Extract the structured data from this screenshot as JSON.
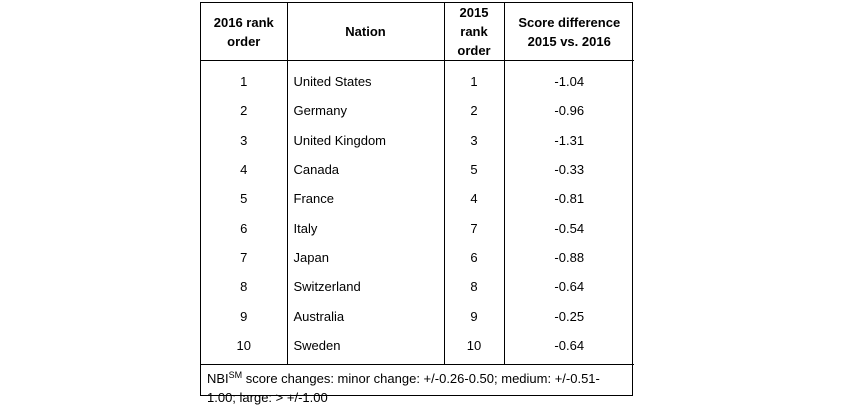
{
  "table": {
    "headers": {
      "rank_2016": "2016 rank order",
      "nation": "Nation",
      "rank_2015": "2015 rank order",
      "score_diff_line1": "Score difference",
      "score_diff_line2": "2015 vs. 2016"
    },
    "headers_split": {
      "rank_2016_line1": "2016 rank",
      "rank_2016_line2": "order",
      "rank_2015_line1": "2015 rank",
      "rank_2015_line2": "order"
    },
    "rows": [
      {
        "rank_2016": "1",
        "nation": "United States",
        "rank_2015": "1",
        "score_diff": "-1.04"
      },
      {
        "rank_2016": "2",
        "nation": "Germany",
        "rank_2015": "2",
        "score_diff": "-0.96"
      },
      {
        "rank_2016": "3",
        "nation": "United Kingdom",
        "rank_2015": "3",
        "score_diff": "-1.31"
      },
      {
        "rank_2016": "4",
        "nation": "Canada",
        "rank_2015": "5",
        "score_diff": "-0.33"
      },
      {
        "rank_2016": "5",
        "nation": "France",
        "rank_2015": "4",
        "score_diff": "-0.81"
      },
      {
        "rank_2016": "6",
        "nation": "Italy",
        "rank_2015": "7",
        "score_diff": "-0.54"
      },
      {
        "rank_2016": "7",
        "nation": "Japan",
        "rank_2015": "6",
        "score_diff": "-0.88"
      },
      {
        "rank_2016": "8",
        "nation": "Switzerland",
        "rank_2015": "8",
        "score_diff": "-0.64"
      },
      {
        "rank_2016": "9",
        "nation": "Australia",
        "rank_2015": "9",
        "score_diff": "-0.25"
      },
      {
        "rank_2016": "10",
        "nation": "Sweden",
        "rank_2015": "10",
        "score_diff": "-0.64"
      }
    ]
  },
  "footnote": {
    "prefix": "NBI",
    "superscript": "SM",
    "text": " score changes: minor change: +/-0.26-0.50; medium: +/-0.51-1.00; large: > +/-1.00"
  }
}
